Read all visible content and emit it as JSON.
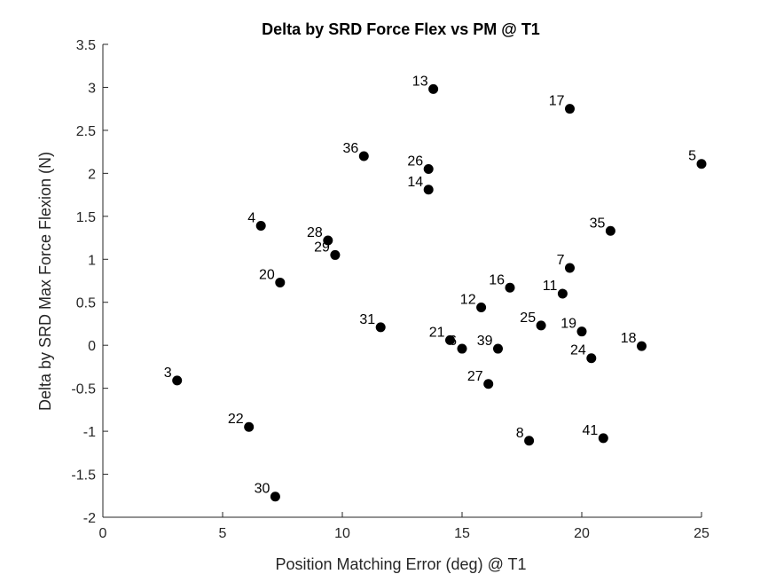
{
  "chart_data": {
    "type": "scatter",
    "title": "Delta by SRD Force Flex vs PM @ T1",
    "xlabel": "Position Matching Error (deg) @ T1",
    "ylabel": "Delta by SRD Max Force Flexion (N)",
    "xlim": [
      0,
      25
    ],
    "ylim": [
      -2,
      3.5
    ],
    "xticks": [
      0,
      5,
      10,
      15,
      20,
      25
    ],
    "yticks": [
      -2,
      -1.5,
      -1,
      -0.5,
      0,
      0.5,
      1,
      1.5,
      2,
      2.5,
      3,
      3.5
    ],
    "xtick_labels": [
      "0",
      "5",
      "10",
      "15",
      "20",
      "25"
    ],
    "ytick_labels": [
      "-2",
      "-1.5",
      "-1",
      "-0.5",
      "0",
      "0.5",
      "1",
      "1.5",
      "2",
      "2.5",
      "3",
      "3.5"
    ],
    "marker_color": "#000000",
    "points": [
      {
        "label": "3",
        "x": 3.1,
        "y": -0.41
      },
      {
        "label": "4",
        "x": 6.6,
        "y": 1.39
      },
      {
        "label": "20",
        "x": 7.4,
        "y": 0.73
      },
      {
        "label": "22",
        "x": 6.1,
        "y": -0.95
      },
      {
        "label": "30",
        "x": 7.2,
        "y": -1.76
      },
      {
        "label": "28",
        "x": 9.4,
        "y": 1.22
      },
      {
        "label": "29",
        "x": 9.7,
        "y": 1.05
      },
      {
        "label": "36",
        "x": 10.9,
        "y": 2.2
      },
      {
        "label": "31",
        "x": 11.6,
        "y": 0.21
      },
      {
        "label": "13",
        "x": 13.8,
        "y": 2.98
      },
      {
        "label": "26",
        "x": 13.6,
        "y": 2.05
      },
      {
        "label": "14",
        "x": 13.6,
        "y": 1.81
      },
      {
        "label": "21",
        "x": 14.5,
        "y": 0.06
      },
      {
        "label": "6",
        "x": 15.0,
        "y": -0.04
      },
      {
        "label": "12",
        "x": 15.8,
        "y": 0.44
      },
      {
        "label": "27",
        "x": 16.1,
        "y": -0.45
      },
      {
        "label": "39",
        "x": 16.5,
        "y": -0.04
      },
      {
        "label": "16",
        "x": 17.0,
        "y": 0.67
      },
      {
        "label": "8",
        "x": 17.8,
        "y": -1.11
      },
      {
        "label": "25",
        "x": 18.3,
        "y": 0.23
      },
      {
        "label": "17",
        "x": 19.5,
        "y": 2.75
      },
      {
        "label": "7",
        "x": 19.5,
        "y": 0.9
      },
      {
        "label": "11",
        "x": 19.2,
        "y": 0.6
      },
      {
        "label": "19",
        "x": 20.0,
        "y": 0.16
      },
      {
        "label": "24",
        "x": 20.4,
        "y": -0.15
      },
      {
        "label": "41",
        "x": 20.9,
        "y": -1.08
      },
      {
        "label": "35",
        "x": 21.2,
        "y": 1.33
      },
      {
        "label": "18",
        "x": 22.5,
        "y": -0.01
      },
      {
        "label": "5",
        "x": 25.0,
        "y": 2.11
      }
    ]
  }
}
